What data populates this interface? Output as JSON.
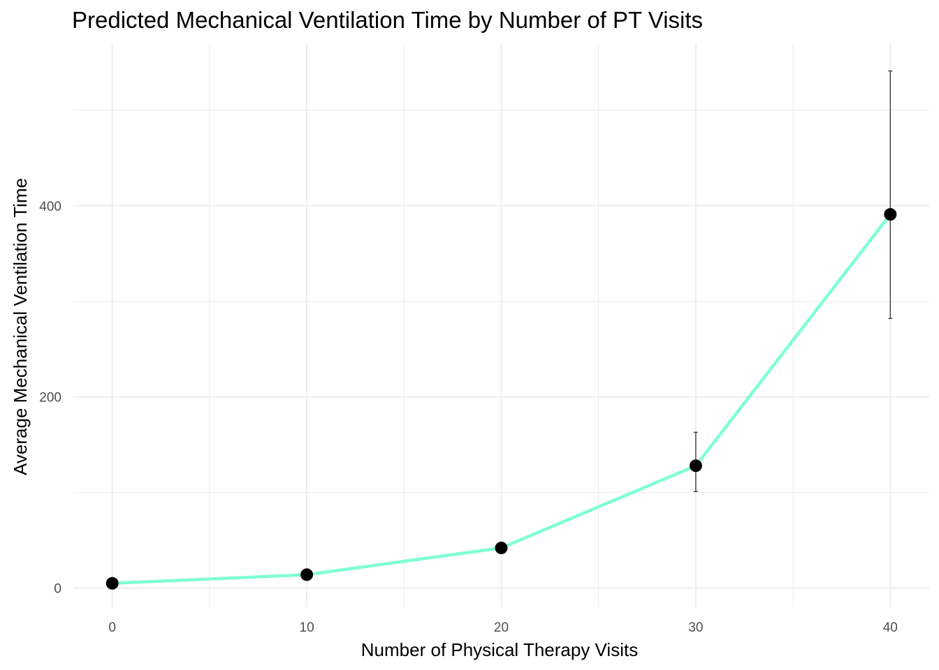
{
  "chart_data": {
    "type": "line",
    "title": "Predicted Mechanical Ventilation Time by Number of PT Visits",
    "xlabel": "Number of Physical Therapy Visits",
    "ylabel": "Average Mechanical Ventilation Time",
    "x": [
      0,
      10,
      20,
      30,
      40
    ],
    "series": [
      {
        "values": [
          5,
          14,
          42,
          128,
          391
        ],
        "error_low": [
          5,
          14,
          42,
          101,
          282
        ],
        "error_high": [
          5,
          14,
          42,
          163,
          541
        ]
      }
    ],
    "xlim": [
      -2,
      42
    ],
    "ylim": [
      -20,
      570
    ],
    "x_ticks": [
      0,
      10,
      20,
      30,
      40
    ],
    "y_ticks": [
      0,
      200,
      400
    ],
    "x_tick_labels": [
      "0",
      "10",
      "20",
      "30",
      "40"
    ],
    "y_tick_labels": [
      "0",
      "200",
      "400"
    ],
    "grid": true,
    "legend": "none",
    "colors": {
      "line": "#7fffd4",
      "point": "#000000",
      "error_bar": "#333333",
      "grid": "#ebebeb"
    }
  }
}
